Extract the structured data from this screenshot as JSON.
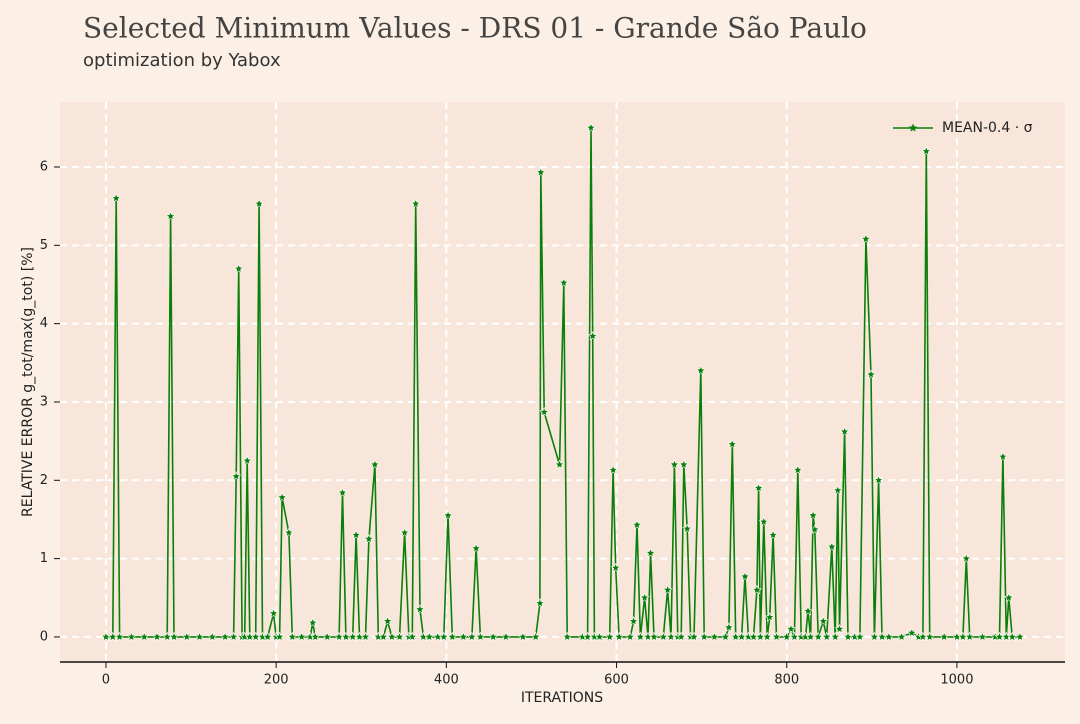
{
  "chart_data": {
    "type": "line",
    "title": "Selected Minimum Values - DRS 01 - Grande São Paulo",
    "subtitle": "optimization by Yabox",
    "x_label": "ITERATIONS",
    "y_label": "RELATIVE ERROR g_tot/max(g_tot) [%]",
    "x": [
      0,
      8,
      12,
      16,
      30,
      45,
      60,
      72,
      76,
      80,
      95,
      110,
      125,
      140,
      150,
      153,
      156,
      160,
      163,
      166,
      169,
      176,
      180,
      184,
      190,
      197,
      200,
      204,
      207,
      215,
      219,
      230,
      240,
      243,
      246,
      260,
      274,
      278,
      282,
      290,
      294,
      298,
      305,
      309,
      316,
      320,
      326,
      331,
      336,
      345,
      351,
      356,
      360,
      364,
      369,
      373,
      380,
      390,
      397,
      402,
      407,
      420,
      430,
      435,
      440,
      455,
      470,
      490,
      505,
      510,
      511,
      515,
      533,
      538,
      542,
      560,
      566,
      570,
      572,
      574,
      580,
      592,
      596,
      599,
      603,
      616,
      620,
      624,
      628,
      633,
      637,
      640,
      644,
      655,
      660,
      664,
      668,
      672,
      676,
      679,
      683,
      687,
      691,
      699,
      703,
      715,
      728,
      732,
      736,
      740,
      747,
      751,
      755,
      761,
      765,
      767,
      769,
      773,
      777,
      780,
      784,
      788,
      800,
      805,
      809,
      813,
      817,
      822,
      825,
      828,
      831,
      833,
      837,
      843,
      847,
      853,
      857,
      860,
      862,
      868,
      872,
      880,
      886,
      893,
      899,
      903,
      908,
      912,
      920,
      935,
      947,
      955,
      960,
      964,
      968,
      985,
      1000,
      1007,
      1011,
      1015,
      1030,
      1045,
      1050,
      1054,
      1058,
      1061,
      1065,
      1074
    ],
    "series": [
      {
        "name": "MEAN-0.4 · σ",
        "color": "#0a7f0a",
        "values": [
          0,
          0,
          5.6,
          0,
          0,
          0,
          0,
          0,
          5.37,
          0,
          0,
          0,
          0,
          0,
          0,
          2.05,
          4.7,
          0,
          0,
          2.25,
          0,
          0,
          5.53,
          0,
          0,
          0.3,
          0,
          0,
          1.78,
          1.33,
          0,
          0,
          0,
          0.18,
          0,
          0,
          0,
          1.84,
          0,
          0,
          1.3,
          0,
          0,
          1.25,
          2.2,
          0,
          0,
          0.2,
          0,
          0,
          1.33,
          0,
          0,
          5.53,
          0.35,
          0,
          0,
          0,
          0,
          1.55,
          0,
          0,
          0,
          1.13,
          0,
          0,
          0,
          0,
          0,
          0.43,
          5.93,
          2.87,
          2.2,
          4.52,
          0,
          0,
          0,
          6.5,
          3.84,
          0,
          0,
          0,
          2.13,
          0.88,
          0,
          0,
          0.2,
          1.43,
          0,
          0.5,
          0,
          1.07,
          0,
          0,
          0.6,
          0,
          2.2,
          0,
          0,
          2.2,
          1.38,
          0,
          0,
          3.4,
          0,
          0,
          0,
          0.12,
          2.46,
          0,
          0,
          0.77,
          0,
          0,
          0.6,
          1.9,
          0,
          1.47,
          0,
          0.25,
          1.3,
          0,
          0,
          0.1,
          0,
          2.13,
          0,
          0,
          0.33,
          0,
          1.55,
          1.37,
          0,
          0.2,
          0,
          1.15,
          0,
          1.87,
          0.1,
          2.62,
          0,
          0,
          0,
          5.08,
          3.35,
          0,
          2.0,
          0,
          0,
          0,
          0.05,
          0,
          0,
          6.2,
          0,
          0,
          0,
          0,
          1.0,
          0,
          0,
          0,
          0,
          2.3,
          0,
          0.5,
          0,
          0
        ]
      }
    ],
    "xlim": [
      -54,
      1127
    ],
    "ylim": [
      -0.32,
      6.83
    ],
    "xticks": [
      0,
      200,
      400,
      600,
      800,
      1000
    ],
    "yticks": [
      0,
      1,
      2,
      3,
      4,
      5,
      6
    ],
    "grid": true,
    "legend": "upper right"
  }
}
